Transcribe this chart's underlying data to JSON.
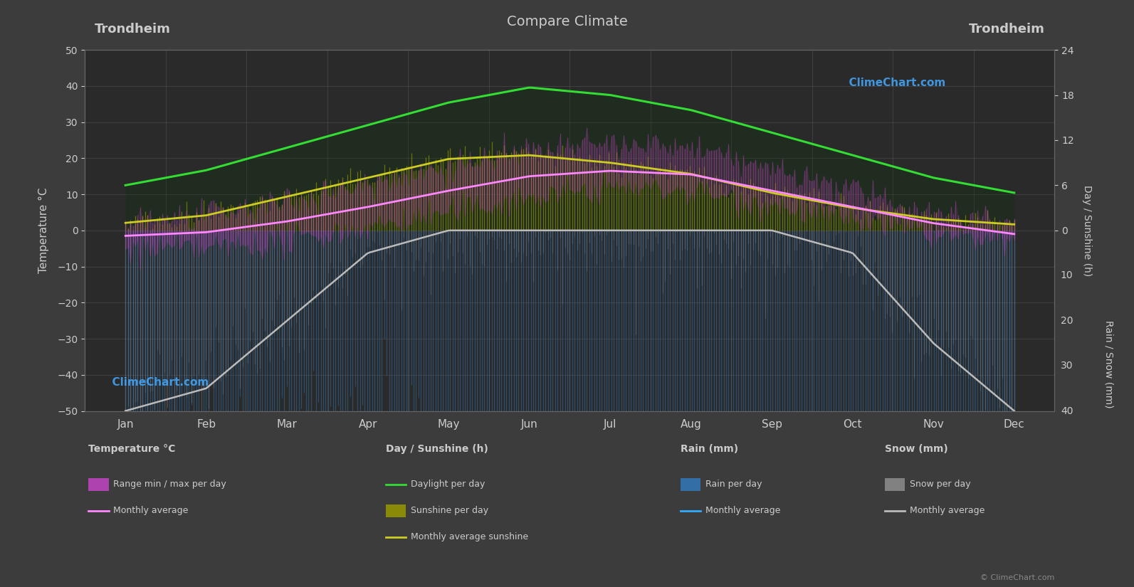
{
  "title": "Compare Climate",
  "city_left": "Trondheim",
  "city_right": "Trondheim",
  "background_color": "#3c3c3c",
  "plot_bg_color": "#2a2a2a",
  "text_color": "#cccccc",
  "grid_color": "#505050",
  "months": [
    "Jan",
    "Feb",
    "Mar",
    "Apr",
    "May",
    "Jun",
    "Jul",
    "Aug",
    "Sep",
    "Oct",
    "Nov",
    "Dec"
  ],
  "ylim_left": [
    -50,
    50
  ],
  "temp_min_daily": [
    -5,
    -5,
    -3,
    1,
    5,
    9,
    12,
    11,
    7,
    3,
    -1,
    -4
  ],
  "temp_max_daily": [
    3,
    4,
    8,
    13,
    18,
    22,
    24,
    23,
    17,
    11,
    5,
    3
  ],
  "temp_avg_monthly": [
    -1.5,
    -0.5,
    2.5,
    6.5,
    11.0,
    15.0,
    16.5,
    15.5,
    11.0,
    6.5,
    2.0,
    -1.0
  ],
  "daylight_hours": [
    6,
    8,
    11,
    14,
    17,
    19,
    18,
    16,
    13,
    10,
    7,
    5
  ],
  "sunshine_hours_daily": [
    1.0,
    2.0,
    4.5,
    7.0,
    9.5,
    10.0,
    9.0,
    7.5,
    5.0,
    3.0,
    1.5,
    0.8
  ],
  "rain_mm_daily": [
    60,
    50,
    55,
    45,
    55,
    65,
    80,
    90,
    100,
    100,
    85,
    70
  ],
  "snow_mm_daily": [
    40,
    35,
    20,
    5,
    0,
    0,
    0,
    0,
    0,
    5,
    25,
    40
  ],
  "color_daylight": "#33dd33",
  "color_sunshine_fill": "#999900",
  "color_temp_range_fill_top": "#cc44cc",
  "color_temp_range_fill_bot": "#884488",
  "color_temp_avg": "#ff88ff",
  "color_sunshine_avg": "#cccc22",
  "color_rain_bar": "#3377bb",
  "color_snow_bar": "#999999",
  "color_rain_avg": "#33aaff",
  "color_snow_avg": "#bbbbbb",
  "copyright_text": "© ClimeChart.com"
}
